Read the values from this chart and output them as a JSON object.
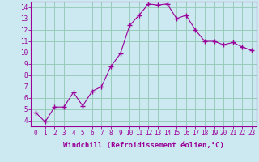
{
  "x": [
    0,
    1,
    2,
    3,
    4,
    5,
    6,
    7,
    8,
    9,
    10,
    11,
    12,
    13,
    14,
    15,
    16,
    17,
    18,
    19,
    20,
    21,
    22,
    23
  ],
  "y": [
    4.7,
    3.9,
    5.2,
    5.2,
    6.5,
    5.3,
    6.6,
    7.0,
    8.8,
    9.9,
    12.4,
    13.3,
    14.3,
    14.2,
    14.3,
    13.0,
    13.3,
    12.0,
    11.0,
    11.0,
    10.7,
    10.9,
    10.5,
    10.2
  ],
  "line_color": "#990099",
  "marker": "+",
  "marker_size": 4,
  "marker_lw": 1.0,
  "bg_color": "#cce8f0",
  "grid_color": "#99ccbb",
  "xlabel": "Windchill (Refroidissement éolien,°C)",
  "ylabel": "",
  "title": "",
  "xlim": [
    -0.5,
    23.5
  ],
  "ylim": [
    3.5,
    14.5
  ],
  "yticks": [
    4,
    5,
    6,
    7,
    8,
    9,
    10,
    11,
    12,
    13,
    14
  ],
  "xticks": [
    0,
    1,
    2,
    3,
    4,
    5,
    6,
    7,
    8,
    9,
    10,
    11,
    12,
    13,
    14,
    15,
    16,
    17,
    18,
    19,
    20,
    21,
    22,
    23
  ],
  "label_fontsize": 6.5,
  "tick_fontsize": 5.5
}
